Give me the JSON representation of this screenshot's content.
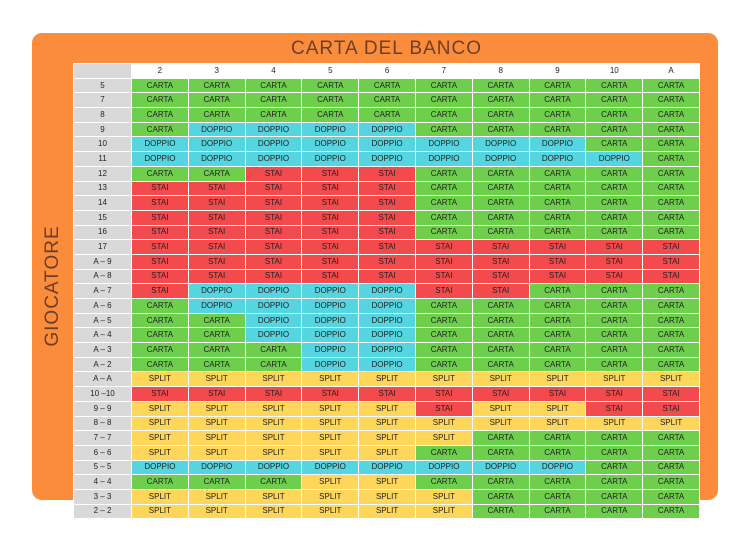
{
  "title": "CARTA DEL BANCO",
  "side_label": "GIOCATORE",
  "dealer_cards": [
    "2",
    "3",
    "4",
    "5",
    "6",
    "7",
    "8",
    "9",
    "10",
    "A"
  ],
  "legend": {
    "C": "CARTA",
    "D": "DOPPIO",
    "S": "STAI",
    "P": "SPLIT"
  },
  "colors": {
    "CARTA": "#6ecf4d",
    "DOPPIO": "#55d5e0",
    "STAI": "#f24a4d",
    "SPLIT": "#fdd65a",
    "frame": "#fb8c3b"
  },
  "rows": [
    {
      "label": "5",
      "cells": [
        "C",
        "C",
        "C",
        "C",
        "C",
        "C",
        "C",
        "C",
        "C",
        "C"
      ]
    },
    {
      "label": "7",
      "cells": [
        "C",
        "C",
        "C",
        "C",
        "C",
        "C",
        "C",
        "C",
        "C",
        "C"
      ]
    },
    {
      "label": "8",
      "cells": [
        "C",
        "C",
        "C",
        "C",
        "C",
        "C",
        "C",
        "C",
        "C",
        "C"
      ]
    },
    {
      "label": "9",
      "cells": [
        "C",
        "D",
        "D",
        "D",
        "D",
        "C",
        "C",
        "C",
        "C",
        "C"
      ]
    },
    {
      "label": "10",
      "cells": [
        "D",
        "D",
        "D",
        "D",
        "D",
        "D",
        "D",
        "D",
        "C",
        "C"
      ]
    },
    {
      "label": "11",
      "cells": [
        "D",
        "D",
        "D",
        "D",
        "D",
        "D",
        "D",
        "D",
        "D",
        "C"
      ]
    },
    {
      "label": "12",
      "cells": [
        "C",
        "C",
        "S",
        "S",
        "S",
        "C",
        "C",
        "C",
        "C",
        "C"
      ]
    },
    {
      "label": "13",
      "cells": [
        "S",
        "S",
        "S",
        "S",
        "S",
        "C",
        "C",
        "C",
        "C",
        "C"
      ]
    },
    {
      "label": "14",
      "cells": [
        "S",
        "S",
        "S",
        "S",
        "S",
        "C",
        "C",
        "C",
        "C",
        "C"
      ]
    },
    {
      "label": "15",
      "cells": [
        "S",
        "S",
        "S",
        "S",
        "S",
        "C",
        "C",
        "C",
        "C",
        "C"
      ]
    },
    {
      "label": "16",
      "cells": [
        "S",
        "S",
        "S",
        "S",
        "S",
        "C",
        "C",
        "C",
        "C",
        "C"
      ]
    },
    {
      "label": "17",
      "cells": [
        "S",
        "S",
        "S",
        "S",
        "S",
        "S",
        "S",
        "S",
        "S",
        "S"
      ]
    },
    {
      "label": "A – 9",
      "cells": [
        "S",
        "S",
        "S",
        "S",
        "S",
        "S",
        "S",
        "S",
        "S",
        "S"
      ]
    },
    {
      "label": "A – 8",
      "cells": [
        "S",
        "S",
        "S",
        "S",
        "S",
        "S",
        "S",
        "S",
        "S",
        "S"
      ]
    },
    {
      "label": "A – 7",
      "cells": [
        "S",
        "D",
        "D",
        "D",
        "D",
        "S",
        "S",
        "C",
        "C",
        "C"
      ]
    },
    {
      "label": "A – 6",
      "cells": [
        "C",
        "D",
        "D",
        "D",
        "D",
        "C",
        "C",
        "C",
        "C",
        "C"
      ]
    },
    {
      "label": "A – 5",
      "cells": [
        "C",
        "C",
        "D",
        "D",
        "D",
        "C",
        "C",
        "C",
        "C",
        "C"
      ]
    },
    {
      "label": "A – 4",
      "cells": [
        "C",
        "C",
        "D",
        "D",
        "D",
        "C",
        "C",
        "C",
        "C",
        "C"
      ]
    },
    {
      "label": "A – 3",
      "cells": [
        "C",
        "C",
        "C",
        "D",
        "D",
        "C",
        "C",
        "C",
        "C",
        "C"
      ]
    },
    {
      "label": "A – 2",
      "cells": [
        "C",
        "C",
        "C",
        "D",
        "D",
        "C",
        "C",
        "C",
        "C",
        "C"
      ]
    },
    {
      "label": "A – A",
      "cells": [
        "P",
        "P",
        "P",
        "P",
        "P",
        "P",
        "P",
        "P",
        "P",
        "P"
      ]
    },
    {
      "label": "10 –10",
      "cells": [
        "S",
        "S",
        "S",
        "S",
        "S",
        "S",
        "S",
        "S",
        "S",
        "S"
      ]
    },
    {
      "label": "9 – 9",
      "cells": [
        "P",
        "P",
        "P",
        "P",
        "P",
        "S",
        "P",
        "P",
        "S",
        "S"
      ]
    },
    {
      "label": "8 – 8",
      "cells": [
        "P",
        "P",
        "P",
        "P",
        "P",
        "P",
        "P",
        "P",
        "P",
        "P"
      ]
    },
    {
      "label": "7 – 7",
      "cells": [
        "P",
        "P",
        "P",
        "P",
        "P",
        "P",
        "C",
        "C",
        "C",
        "C"
      ]
    },
    {
      "label": "6 – 6",
      "cells": [
        "P",
        "P",
        "P",
        "P",
        "P",
        "C",
        "C",
        "C",
        "C",
        "C"
      ]
    },
    {
      "label": "5 – 5",
      "cells": [
        "D",
        "D",
        "D",
        "D",
        "D",
        "D",
        "D",
        "D",
        "C",
        "C"
      ]
    },
    {
      "label": "4 – 4",
      "cells": [
        "C",
        "C",
        "C",
        "P",
        "P",
        "C",
        "C",
        "C",
        "C",
        "C"
      ]
    },
    {
      "label": "3 – 3",
      "cells": [
        "P",
        "P",
        "P",
        "P",
        "P",
        "P",
        "C",
        "C",
        "C",
        "C"
      ]
    },
    {
      "label": "2 – 2",
      "cells": [
        "P",
        "P",
        "P",
        "P",
        "P",
        "P",
        "C",
        "C",
        "C",
        "C"
      ]
    }
  ]
}
